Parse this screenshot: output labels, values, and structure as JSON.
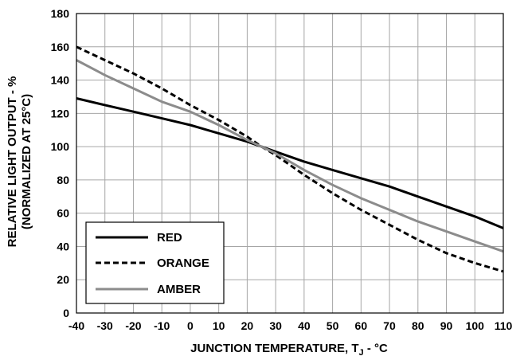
{
  "chart_data": {
    "type": "line",
    "xlabel": {
      "main": "JUNCTION TEMPERATURE, T",
      "subscript": "J",
      "suffix": " - °C"
    },
    "ylabel": {
      "line1": "RELATIVE LIGHT OUTPUT - %",
      "line2": "(NORMALIZED AT 25°C)"
    },
    "xlim": [
      -40,
      110
    ],
    "ylim": [
      0,
      180
    ],
    "xticks": [
      -40,
      -30,
      -20,
      -10,
      0,
      10,
      20,
      30,
      40,
      50,
      60,
      70,
      80,
      90,
      100,
      110
    ],
    "yticks": [
      0,
      20,
      40,
      60,
      80,
      100,
      120,
      140,
      160,
      180
    ],
    "grid": true,
    "legend_position": "bottom-left",
    "x": [
      -40,
      -30,
      -20,
      -10,
      0,
      10,
      20,
      25,
      30,
      40,
      50,
      60,
      70,
      80,
      90,
      100,
      110
    ],
    "series": [
      {
        "name": "RED",
        "color": "#000000",
        "dash": "solid",
        "values": [
          129,
          125,
          121,
          117,
          113,
          108,
          103,
          100,
          97,
          91,
          86,
          81,
          76,
          70,
          64,
          58,
          51
        ]
      },
      {
        "name": "ORANGE",
        "color": "#000000",
        "dash": "dashed",
        "values": [
          160,
          152,
          144,
          135,
          125,
          116,
          106,
          100,
          95,
          83,
          72,
          62,
          53,
          44,
          36,
          30,
          25
        ]
      },
      {
        "name": "AMBER",
        "color": "#8c8c8c",
        "dash": "solid",
        "values": [
          152,
          143,
          135,
          127,
          121,
          113,
          104,
          100,
          96,
          86,
          77,
          69,
          62,
          55,
          49,
          43,
          37
        ]
      }
    ]
  }
}
